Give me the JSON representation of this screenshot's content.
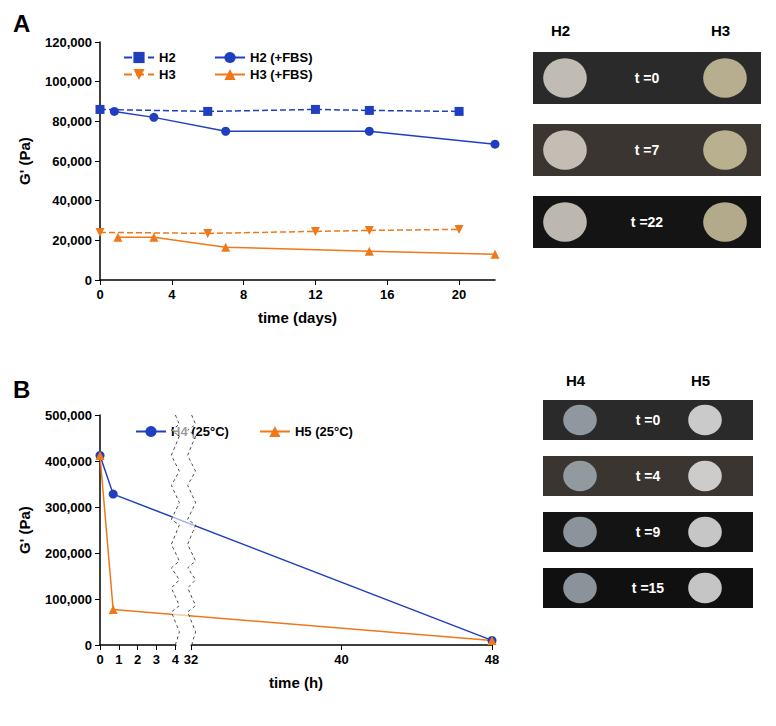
{
  "chart_data": [
    {
      "panel": "A",
      "type": "line",
      "x_label": "time (days)",
      "y_label": "G' (Pa)",
      "xlim": [
        0,
        22
      ],
      "xticks": [
        0,
        4,
        8,
        12,
        16,
        20
      ],
      "ylim": [
        0,
        120000
      ],
      "yticks": [
        0,
        {
          "value": 20000,
          "label": "20,000"
        },
        {
          "value": 40000,
          "label": "40,000"
        },
        {
          "value": 60000,
          "label": "60,000"
        },
        {
          "value": 80000,
          "label": "80,000"
        },
        {
          "value": 100000,
          "label": "100,000"
        },
        {
          "value": 120000,
          "label": "120,000"
        }
      ],
      "grid": false,
      "legend": "upper left",
      "series": [
        {
          "name": "H2",
          "color": "#1f3fbf",
          "marker": "square",
          "line_style": "dashed",
          "x": [
            0,
            6,
            12,
            15,
            20
          ],
          "values": [
            86000,
            85000,
            86000,
            85500,
            85000
          ]
        },
        {
          "name": "H2 (+FBS)",
          "color": "#1f3fbf",
          "marker": "circle",
          "line_style": "solid",
          "x": [
            0.8,
            3,
            7,
            15,
            22
          ],
          "values": [
            85000,
            82000,
            75000,
            75000,
            68500
          ]
        },
        {
          "name": "H3",
          "color": "#f07818",
          "marker": "triangle-down",
          "line_style": "dashed",
          "x": [
            0,
            6,
            12,
            15,
            20
          ],
          "values": [
            24000,
            23500,
            24500,
            25000,
            25500
          ]
        },
        {
          "name": "H3 (+FBS)",
          "color": "#f07818",
          "marker": "triangle",
          "line_style": "solid",
          "x": [
            1,
            3,
            7,
            15,
            22
          ],
          "values": [
            21500,
            21500,
            16500,
            14500,
            13000
          ]
        }
      ]
    },
    {
      "panel": "B",
      "type": "line",
      "x_label": "time (h)",
      "y_label": "G' (Pa)",
      "xlim": [
        0,
        48
      ],
      "x_break": [
        4,
        32
      ],
      "xticks": [
        0,
        1,
        2,
        3,
        4,
        32,
        40,
        48
      ],
      "ylim": [
        0,
        500000
      ],
      "yticks": [
        0,
        {
          "value": 100000,
          "label": "100,000"
        },
        {
          "value": 200000,
          "label": "200,000"
        },
        {
          "value": 300000,
          "label": "300,000"
        },
        {
          "value": 400000,
          "label": "400,000"
        },
        {
          "value": 500000,
          "label": "500,000"
        }
      ],
      "grid": false,
      "legend": "upper left",
      "series": [
        {
          "name": "H4 (25°C)",
          "color": "#1f3fbf",
          "marker": "circle",
          "line_style": "solid",
          "x": [
            0,
            0.7,
            48
          ],
          "values": [
            412000,
            328000,
            10000
          ]
        },
        {
          "name": "H5 (25°C)",
          "color": "#f07818",
          "marker": "triangle",
          "line_style": "solid",
          "x": [
            0,
            0.7,
            48
          ],
          "values": [
            412000,
            77000,
            10000
          ]
        }
      ]
    }
  ],
  "photos": [
    {
      "panel": "A",
      "columns": [
        "H2",
        "H3"
      ],
      "rows": [
        "t =0",
        "t =7",
        "t =22"
      ]
    },
    {
      "panel": "B",
      "columns": [
        "H4",
        "H5"
      ],
      "rows": [
        "t =0",
        "t =4",
        "t =9",
        "t =15"
      ]
    }
  ]
}
